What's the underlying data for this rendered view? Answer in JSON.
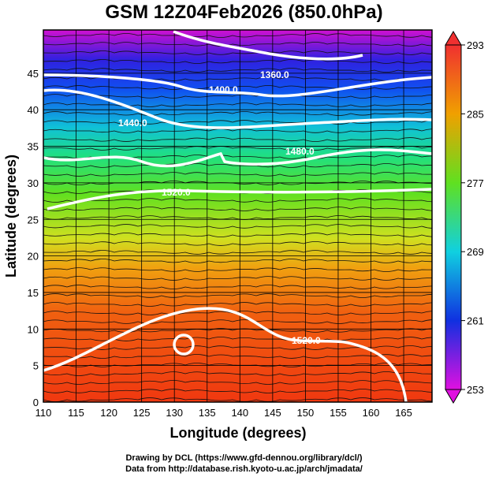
{
  "title": "GSM 12Z04Feb2026 (850.0hPa)",
  "xaxis": {
    "label": "Longitude (degrees)",
    "ticks": [
      "110",
      "115",
      "120",
      "125",
      "130",
      "135",
      "140",
      "145",
      "150",
      "155",
      "160",
      "165"
    ]
  },
  "yaxis": {
    "label": "Latitude  (degrees)",
    "ticks": [
      "0",
      "5",
      "10",
      "15",
      "20",
      "25",
      "30",
      "35",
      "40",
      "45"
    ]
  },
  "colorbar": {
    "ticks": [
      "293",
      "285",
      "277",
      "269",
      "261",
      "253"
    ],
    "range": [
      253,
      293
    ]
  },
  "contour_labels": [
    "1360.0",
    "1400.0",
    "1440.0",
    "1480.0",
    "1520.0",
    "1520.0"
  ],
  "footer": {
    "line1": "Drawing by DCL (https://www.gfd-dennou.org/library/dcl/)",
    "line2": "Data from http://database.rish.kyoto-u.ac.jp/arch/jmadata/"
  }
}
